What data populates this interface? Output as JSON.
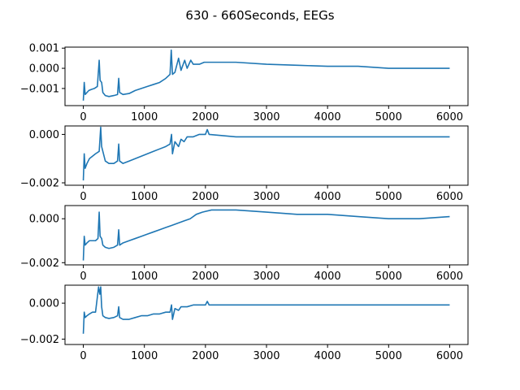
{
  "figure": {
    "title": "630 - 660Seconds, EEGs"
  },
  "chart_data": [
    {
      "type": "line",
      "grid": false,
      "xlim": [
        -300,
        6300
      ],
      "ylim": [
        -0.00185,
        0.00105
      ],
      "x_ticks": [
        {
          "value": 0,
          "label": "0"
        },
        {
          "value": 1000,
          "label": "1000"
        },
        {
          "value": 2000,
          "label": "2000"
        },
        {
          "value": 3000,
          "label": "3000"
        },
        {
          "value": 4000,
          "label": "4000"
        },
        {
          "value": 5000,
          "label": "5000"
        },
        {
          "value": 6000,
          "label": "6000"
        }
      ],
      "y_ticks": [
        {
          "value": 0.001,
          "label": "0.001"
        },
        {
          "value": 0.0,
          "label": "0.000"
        },
        {
          "value": -0.001,
          "label": "−0.001"
        }
      ],
      "series": [
        {
          "color": "#1f77b4",
          "points": [
            [
              0,
              -0.0016
            ],
            [
              15,
              -0.0007
            ],
            [
              30,
              -0.0013
            ],
            [
              60,
              -0.0012
            ],
            [
              90,
              -0.0011
            ],
            [
              130,
              -0.00105
            ],
            [
              180,
              -0.001
            ],
            [
              230,
              -0.0009
            ],
            [
              260,
              0.0004
            ],
            [
              275,
              -0.0006
            ],
            [
              300,
              -0.0007
            ],
            [
              320,
              -0.0012
            ],
            [
              360,
              -0.00135
            ],
            [
              420,
              -0.0014
            ],
            [
              500,
              -0.00135
            ],
            [
              560,
              -0.0013
            ],
            [
              580,
              -0.0005
            ],
            [
              595,
              -0.0012
            ],
            [
              650,
              -0.0013
            ],
            [
              750,
              -0.00125
            ],
            [
              850,
              -0.0011
            ],
            [
              950,
              -0.001
            ],
            [
              1050,
              -0.0009
            ],
            [
              1150,
              -0.0008
            ],
            [
              1250,
              -0.0007
            ],
            [
              1350,
              -0.0005
            ],
            [
              1420,
              -0.0003
            ],
            [
              1440,
              0.0009
            ],
            [
              1460,
              -0.0003
            ],
            [
              1500,
              -0.0002
            ],
            [
              1560,
              0.0005
            ],
            [
              1600,
              -0.0001
            ],
            [
              1660,
              0.0004
            ],
            [
              1700,
              0.0
            ],
            [
              1760,
              0.0004
            ],
            [
              1800,
              0.0002
            ],
            [
              1900,
              0.0002
            ],
            [
              1980,
              0.0003
            ],
            [
              2050,
              0.0003
            ],
            [
              2500,
              0.0003
            ],
            [
              3000,
              0.0002
            ],
            [
              3500,
              0.00015
            ],
            [
              4000,
              0.0001
            ],
            [
              4500,
              0.0001
            ],
            [
              5000,
              0.0
            ],
            [
              5500,
              0.0
            ],
            [
              6000,
              0.0
            ]
          ]
        }
      ]
    },
    {
      "type": "line",
      "grid": false,
      "xlim": [
        -300,
        6300
      ],
      "ylim": [
        -0.0021,
        0.00035
      ],
      "x_ticks": [
        {
          "value": 0,
          "label": "0"
        },
        {
          "value": 1000,
          "label": "1000"
        },
        {
          "value": 2000,
          "label": "2000"
        },
        {
          "value": 3000,
          "label": "3000"
        },
        {
          "value": 4000,
          "label": "4000"
        },
        {
          "value": 5000,
          "label": "5000"
        },
        {
          "value": 6000,
          "label": "6000"
        }
      ],
      "y_ticks": [
        {
          "value": 0.0,
          "label": "0.000"
        },
        {
          "value": -0.002,
          "label": "−0.002"
        }
      ],
      "series": [
        {
          "color": "#1f77b4",
          "points": [
            [
              0,
              -0.0019
            ],
            [
              15,
              -0.0008
            ],
            [
              30,
              -0.0014
            ],
            [
              60,
              -0.0012
            ],
            [
              100,
              -0.001
            ],
            [
              150,
              -0.0009
            ],
            [
              200,
              -0.0008
            ],
            [
              260,
              -0.0007
            ],
            [
              285,
              0.0003
            ],
            [
              300,
              -0.0005
            ],
            [
              320,
              -0.0007
            ],
            [
              360,
              -0.0011
            ],
            [
              420,
              -0.0012
            ],
            [
              500,
              -0.0012
            ],
            [
              560,
              -0.0011
            ],
            [
              580,
              -0.0004
            ],
            [
              595,
              -0.0011
            ],
            [
              650,
              -0.0012
            ],
            [
              750,
              -0.0011
            ],
            [
              850,
              -0.001
            ],
            [
              950,
              -0.0009
            ],
            [
              1050,
              -0.0008
            ],
            [
              1150,
              -0.0007
            ],
            [
              1250,
              -0.0006
            ],
            [
              1350,
              -0.0005
            ],
            [
              1420,
              -0.0004
            ],
            [
              1445,
              0.0
            ],
            [
              1460,
              -0.0008
            ],
            [
              1500,
              -0.0003
            ],
            [
              1560,
              -0.0005
            ],
            [
              1600,
              -0.0002
            ],
            [
              1650,
              -0.0003
            ],
            [
              1700,
              -0.0001
            ],
            [
              1800,
              -0.0001
            ],
            [
              1900,
              0.0
            ],
            [
              2000,
              0.0
            ],
            [
              2030,
              0.0002
            ],
            [
              2060,
              0.0
            ],
            [
              2500,
              -0.0001
            ],
            [
              3000,
              -0.0001
            ],
            [
              3500,
              -0.0001
            ],
            [
              4000,
              -0.0001
            ],
            [
              4500,
              -0.0001
            ],
            [
              5000,
              -0.0001
            ],
            [
              5500,
              -0.0001
            ],
            [
              6000,
              -0.0001
            ]
          ]
        }
      ]
    },
    {
      "type": "line",
      "grid": false,
      "xlim": [
        -300,
        6300
      ],
      "ylim": [
        -0.0021,
        0.0006
      ],
      "x_ticks": [
        {
          "value": 0,
          "label": "0"
        },
        {
          "value": 1000,
          "label": "1000"
        },
        {
          "value": 2000,
          "label": "2000"
        },
        {
          "value": 3000,
          "label": "3000"
        },
        {
          "value": 4000,
          "label": "4000"
        },
        {
          "value": 5000,
          "label": "5000"
        },
        {
          "value": 6000,
          "label": "6000"
        }
      ],
      "y_ticks": [
        {
          "value": 0.0,
          "label": "0.000"
        },
        {
          "value": -0.002,
          "label": "−0.002"
        }
      ],
      "series": [
        {
          "color": "#1f77b4",
          "points": [
            [
              0,
              -0.0019
            ],
            [
              15,
              -0.0008
            ],
            [
              30,
              -0.0012
            ],
            [
              60,
              -0.0011
            ],
            [
              100,
              -0.001
            ],
            [
              150,
              -0.001
            ],
            [
              200,
              -0.001
            ],
            [
              240,
              -0.0009
            ],
            [
              260,
              0.0003
            ],
            [
              275,
              -0.0008
            ],
            [
              300,
              -0.0009
            ],
            [
              320,
              -0.0012
            ],
            [
              360,
              -0.0013
            ],
            [
              420,
              -0.00135
            ],
            [
              500,
              -0.0013
            ],
            [
              560,
              -0.0012
            ],
            [
              580,
              -0.0005
            ],
            [
              595,
              -0.0012
            ],
            [
              650,
              -0.0011
            ],
            [
              750,
              -0.001
            ],
            [
              850,
              -0.0009
            ],
            [
              950,
              -0.0008
            ],
            [
              1050,
              -0.0007
            ],
            [
              1150,
              -0.0006
            ],
            [
              1250,
              -0.0005
            ],
            [
              1350,
              -0.0004
            ],
            [
              1450,
              -0.0003
            ],
            [
              1550,
              -0.0002
            ],
            [
              1650,
              -0.0001
            ],
            [
              1750,
              0.0
            ],
            [
              1850,
              0.0002
            ],
            [
              1950,
              0.0003
            ],
            [
              2100,
              0.0004
            ],
            [
              2300,
              0.0004
            ],
            [
              2500,
              0.0004
            ],
            [
              3000,
              0.0003
            ],
            [
              3500,
              0.0002
            ],
            [
              4000,
              0.0002
            ],
            [
              4500,
              0.0001
            ],
            [
              5000,
              0.0
            ],
            [
              5500,
              0.0
            ],
            [
              6000,
              0.0001
            ]
          ]
        }
      ]
    },
    {
      "type": "line",
      "grid": false,
      "xlim": [
        -300,
        6300
      ],
      "ylim": [
        -0.0023,
        0.001
      ],
      "x_ticks": [
        {
          "value": 0,
          "label": "0"
        },
        {
          "value": 1000,
          "label": "1000"
        },
        {
          "value": 2000,
          "label": "2000"
        },
        {
          "value": 3000,
          "label": "3000"
        },
        {
          "value": 4000,
          "label": "4000"
        },
        {
          "value": 5000,
          "label": "5000"
        },
        {
          "value": 6000,
          "label": "6000"
        }
      ],
      "y_ticks": [
        {
          "value": 0.0,
          "label": "0.000"
        },
        {
          "value": -0.002,
          "label": "−0.002"
        }
      ],
      "series": [
        {
          "color": "#1f77b4",
          "points": [
            [
              0,
              -0.0017
            ],
            [
              15,
              -0.0005
            ],
            [
              30,
              -0.0008
            ],
            [
              60,
              -0.0007
            ],
            [
              100,
              -0.0006
            ],
            [
              150,
              -0.0005
            ],
            [
              200,
              -0.0005
            ],
            [
              250,
              0.0009
            ],
            [
              270,
              0.0005
            ],
            [
              285,
              0.0009
            ],
            [
              300,
              -0.0002
            ],
            [
              320,
              -0.0007
            ],
            [
              360,
              -0.0008
            ],
            [
              420,
              -0.00085
            ],
            [
              500,
              -0.0008
            ],
            [
              560,
              -0.0007
            ],
            [
              580,
              -0.0002
            ],
            [
              595,
              -0.0008
            ],
            [
              650,
              -0.0009
            ],
            [
              750,
              -0.0009
            ],
            [
              850,
              -0.0008
            ],
            [
              950,
              -0.0007
            ],
            [
              1050,
              -0.0007
            ],
            [
              1150,
              -0.0006
            ],
            [
              1250,
              -0.0006
            ],
            [
              1350,
              -0.0005
            ],
            [
              1420,
              -0.0005
            ],
            [
              1445,
              -0.0001
            ],
            [
              1460,
              -0.0009
            ],
            [
              1500,
              -0.0003
            ],
            [
              1560,
              -0.0004
            ],
            [
              1600,
              -0.0002
            ],
            [
              1700,
              -0.0002
            ],
            [
              1800,
              -0.0001
            ],
            [
              1900,
              -0.0001
            ],
            [
              2000,
              -0.0001
            ],
            [
              2030,
              0.0001
            ],
            [
              2060,
              -0.0001
            ],
            [
              2500,
              -0.0001
            ],
            [
              3000,
              -0.0001
            ],
            [
              3500,
              -0.0001
            ],
            [
              4000,
              -0.0001
            ],
            [
              4500,
              -0.0001
            ],
            [
              5000,
              -0.0001
            ],
            [
              5500,
              -0.0001
            ],
            [
              6000,
              -0.0001
            ]
          ]
        }
      ]
    }
  ]
}
